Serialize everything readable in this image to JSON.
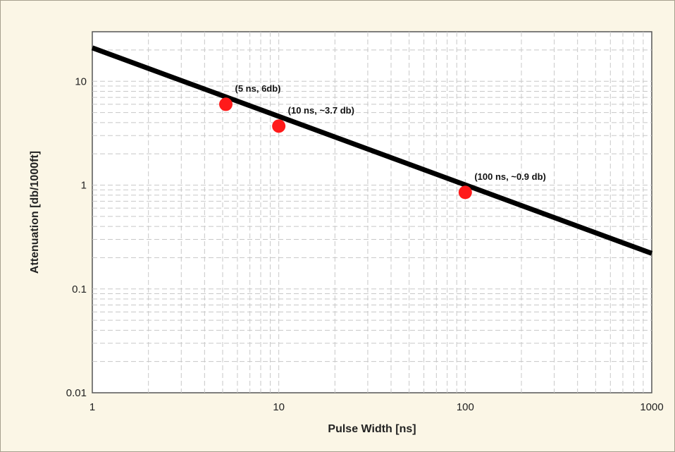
{
  "chart_data": {
    "type": "line",
    "xscale": "log",
    "yscale": "log",
    "xlim": [
      1,
      1000
    ],
    "ylim": [
      0.01,
      30
    ],
    "xlabel": "Pulse Width [ns]",
    "ylabel": "Attenuation [db/1000ft]",
    "xticks": [
      "1",
      "10",
      "100",
      "1000"
    ],
    "yticks": [
      "0.01",
      "0.1",
      "1",
      "10"
    ],
    "grid": "on (major and minor, dashed)",
    "legend": "none",
    "series": [
      {
        "color": "#000000",
        "x": [
          1,
          1000
        ],
        "y": [
          21,
          0.22
        ]
      }
    ],
    "points": [
      {
        "x": 5.2,
        "y": 6,
        "label": "(5 ns, 6db)",
        "color": "#ff1a1a"
      },
      {
        "x": 10,
        "y": 3.7,
        "label": "(10 ns, ~3.7 db)",
        "color": "#ff1a1a"
      },
      {
        "x": 100,
        "y": 0.85,
        "label": "(100 ns, ~0.9 db)",
        "color": "#ff1a1a"
      }
    ]
  }
}
